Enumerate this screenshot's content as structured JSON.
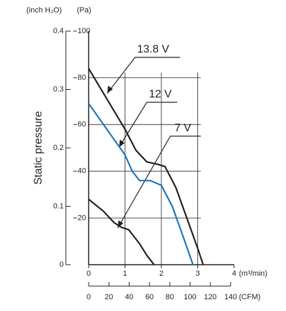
{
  "chart_data": {
    "type": "line",
    "y_label": "Static pressure",
    "y_unit": "(Pa)",
    "y2_unit": "(inch H₂O)",
    "x_unit": "(m³/min)",
    "x2_unit": "(CFM)",
    "xlim": [
      0,
      4
    ],
    "xticks": [
      0,
      1,
      2,
      3,
      4
    ],
    "x2lim": [
      0,
      143.4
    ],
    "x2ticks": [
      0,
      20,
      40,
      60,
      80,
      100,
      120,
      140
    ],
    "ylim": [
      0,
      100
    ],
    "yticks": [
      20,
      40,
      60,
      80,
      100
    ],
    "y2lim": [
      0,
      0.4
    ],
    "y2ticks": [
      0,
      0.1,
      0.2,
      0.3,
      0.4
    ],
    "grid": true,
    "series": [
      {
        "name": "13.8 V",
        "color": "#231f20",
        "x": [
          0,
          0.5,
          1,
          1.3,
          1.6,
          1.9,
          2.1,
          2.4,
          2.7,
          3.0,
          3.15
        ],
        "values": [
          84,
          71,
          58,
          49,
          44,
          43,
          42,
          33,
          20,
          7,
          0
        ]
      },
      {
        "name": "12 V",
        "color": "#1b75bb",
        "x": [
          0,
          0.5,
          1,
          1.2,
          1.4,
          1.7,
          2.0,
          2.3,
          2.6,
          2.87
        ],
        "values": [
          69,
          58,
          47,
          40,
          36,
          36,
          34,
          25,
          12,
          0
        ]
      },
      {
        "name": "7 V",
        "color": "#231f20",
        "x": [
          0,
          0.4,
          0.7,
          0.9,
          1.1,
          1.4,
          1.6,
          1.8
        ],
        "values": [
          28,
          23,
          18,
          16,
          15,
          9,
          4,
          0
        ]
      }
    ]
  }
}
